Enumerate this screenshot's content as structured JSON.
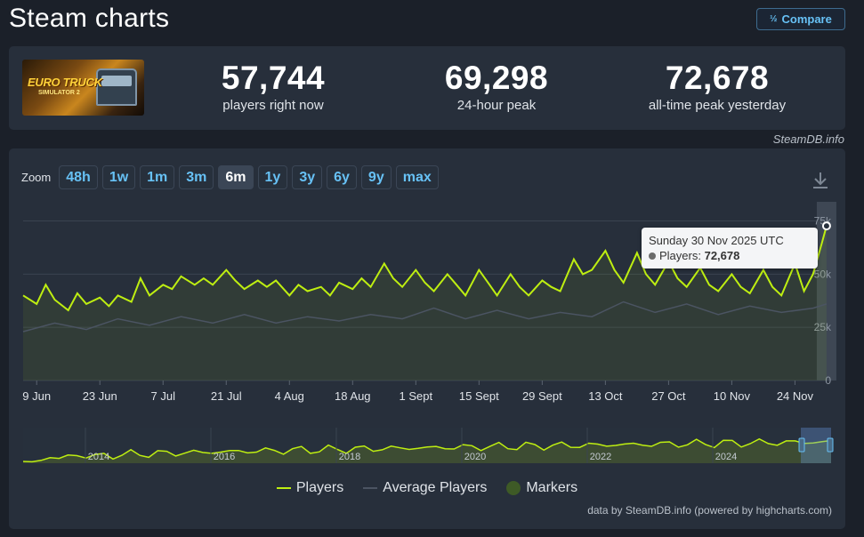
{
  "header": {
    "title": "Steam charts",
    "compare_label": "Compare",
    "compare_icon": "fraction-icon"
  },
  "app": {
    "logo_text": "EURO TRUCK",
    "logo_sub": "SIMULATOR 2"
  },
  "stats": [
    {
      "value": "57,744",
      "label": "players right now"
    },
    {
      "value": "69,298",
      "label": "24-hour peak"
    },
    {
      "value": "72,678",
      "label": "all-time peak yesterday"
    }
  ],
  "credit_top": "SteamDB.info",
  "zoom": {
    "label": "Zoom",
    "options": [
      "48h",
      "1w",
      "1m",
      "3m",
      "6m",
      "1y",
      "3y",
      "6y",
      "9y",
      "max"
    ],
    "active": "6m"
  },
  "tooltip": {
    "date": "Sunday 30 Nov 2025 UTC",
    "series": "Players",
    "value": "72,678"
  },
  "legend": [
    "Players",
    "Average Players",
    "Markers"
  ],
  "credit_bottom": "data by SteamDB.info (powered by highcharts.com)",
  "colors": {
    "players": "#beee11",
    "average": "#4b5462",
    "markers": "#3e5a26",
    "accent": "#67c1f5"
  },
  "chart_data": {
    "type": "line",
    "ylim": [
      0,
      84000
    ],
    "yticks": [
      0,
      25000,
      50000,
      75000
    ],
    "ytick_labels": [
      "0",
      "25k",
      "50k",
      "75k"
    ],
    "xlim": [
      0,
      179
    ],
    "xticks": [
      3,
      17,
      31,
      45,
      59,
      73,
      87,
      101,
      115,
      129,
      143,
      157,
      171
    ],
    "xtick_labels": [
      "9 Jun",
      "23 Jun",
      "7 Jul",
      "21 Jul",
      "4 Aug",
      "18 Aug",
      "1 Sept",
      "15 Sept",
      "29 Sept",
      "13 Oct",
      "27 Oct",
      "10 Nov",
      "24 Nov"
    ],
    "grid": true,
    "legend_position": "bottom",
    "highlight_day": 178,
    "series": [
      {
        "name": "Players",
        "x": [
          0,
          3,
          5,
          7,
          10,
          12,
          14,
          17,
          19,
          21,
          24,
          26,
          28,
          31,
          33,
          35,
          38,
          40,
          42,
          45,
          47,
          49,
          52,
          54,
          56,
          59,
          61,
          63,
          66,
          68,
          70,
          73,
          75,
          77,
          80,
          82,
          84,
          87,
          89,
          91,
          94,
          96,
          98,
          101,
          103,
          105,
          108,
          110,
          112,
          115,
          117,
          119,
          122,
          124,
          126,
          129,
          131,
          133,
          136,
          138,
          140,
          143,
          145,
          147,
          150,
          152,
          154,
          157,
          159,
          161,
          164,
          166,
          168,
          171,
          173,
          175,
          177,
          178
        ],
        "y": [
          40000,
          36000,
          45000,
          38000,
          33000,
          41000,
          36000,
          39000,
          35000,
          40000,
          37000,
          48000,
          40000,
          45000,
          43000,
          49000,
          45000,
          48000,
          45000,
          52000,
          47000,
          43000,
          47000,
          44000,
          47000,
          40000,
          45000,
          42000,
          44000,
          40000,
          46000,
          43000,
          48000,
          44000,
          55000,
          48000,
          44000,
          52000,
          46000,
          42000,
          50000,
          45000,
          40000,
          52000,
          46000,
          40000,
          50000,
          44000,
          40000,
          47000,
          44000,
          42000,
          57000,
          50000,
          52000,
          61000,
          52000,
          46000,
          60000,
          50000,
          45000,
          56000,
          48000,
          44000,
          53000,
          45000,
          42000,
          50000,
          44000,
          41000,
          52000,
          44000,
          40000,
          55000,
          42000,
          50000,
          65000,
          72678
        ]
      },
      {
        "name": "Average Players",
        "x": [
          0,
          7,
          14,
          21,
          28,
          35,
          42,
          49,
          56,
          63,
          70,
          77,
          84,
          91,
          98,
          105,
          112,
          119,
          126,
          133,
          140,
          147,
          154,
          161,
          168,
          175,
          178
        ],
        "y": [
          23000,
          27000,
          24000,
          29000,
          26000,
          30000,
          27000,
          31000,
          27000,
          30000,
          28000,
          31000,
          29000,
          34000,
          29000,
          33000,
          29000,
          32000,
          30000,
          37000,
          32000,
          36000,
          31000,
          35000,
          32000,
          34000,
          36000
        ]
      }
    ],
    "navigator": {
      "xtick_labels": [
        "2014",
        "2016",
        "2018",
        "2020",
        "2022",
        "2024"
      ]
    }
  }
}
